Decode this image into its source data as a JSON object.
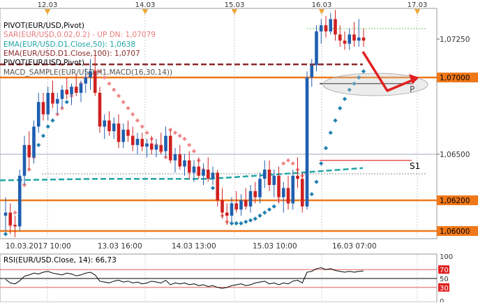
{
  "chart_data": {
    "type": "candlestick",
    "symbol": "EURUSD",
    "timeframe": "H1",
    "top_dates": [
      "12.03",
      "14.03",
      "15.03",
      "16.03",
      "17.03"
    ],
    "bottom_time_labels": [
      "10.03.2017 10:00",
      "13.03 16:00",
      "14.03 13:00",
      "15.03 10:00",
      "16.03 07:00"
    ],
    "price_axis": {
      "min": 1.0595,
      "max": 1.0745,
      "ticks": [
        "1,07250",
        "1,07000",
        "1,06500",
        "1,06200",
        "1,06000"
      ]
    },
    "legend": [
      {
        "text": "PIVOT(EUR/USD,Pivot)",
        "color": "#000000"
      },
      {
        "text": "SAR(EUR/USD,0.02,0.2)  -  UP  DN: 1,07079",
        "color": "#e87b7b"
      },
      {
        "text": "EMA(EUR/USD.D1.Close,50): 1,0638",
        "color": "#21a5a5"
      },
      {
        "text": "EMA(EUR/USD.D1.Close,100): 1,0707",
        "color": "#8b2a2a"
      },
      {
        "text": "PIVOT(EUR/USD,Pivot)",
        "color": "#000000"
      },
      {
        "text": "MACD_SAMPLE(EUR/USD,H1,MACD(16,30,14))",
        "color": "#555555"
      }
    ],
    "levels": [
      {
        "label": "P",
        "value": 1.0696
      },
      {
        "label": "S1",
        "value": 1.0646
      }
    ],
    "horizontal_lines": [
      1.07,
      1.065,
      1.062,
      1.06
    ],
    "price_tag_labels": [
      "1,07250",
      "1,07000",
      "1,06500",
      "1,06200",
      "1,06000"
    ],
    "candles": [
      [
        1.061,
        1.0622,
        1.06,
        1.0612
      ],
      [
        1.0612,
        1.0618,
        1.0598,
        1.0604
      ],
      [
        1.0604,
        1.061,
        1.0596,
        1.0603
      ],
      [
        1.0603,
        1.064,
        1.06,
        1.0636
      ],
      [
        1.0636,
        1.0662,
        1.063,
        1.0656
      ],
      [
        1.0656,
        1.0665,
        1.064,
        1.0648
      ],
      [
        1.0648,
        1.0672,
        1.0644,
        1.0668
      ],
      [
        1.0668,
        1.069,
        1.0664,
        1.0684
      ],
      [
        1.0684,
        1.069,
        1.0672,
        1.0676
      ],
      [
        1.0676,
        1.0694,
        1.0672,
        1.069
      ],
      [
        1.069,
        1.0698,
        1.068,
        1.0683
      ],
      [
        1.0683,
        1.069,
        1.0676,
        1.0686
      ],
      [
        1.0686,
        1.0695,
        1.068,
        1.0692
      ],
      [
        1.0692,
        1.07,
        1.0686,
        1.0689
      ],
      [
        1.0689,
        1.0696,
        1.0682,
        1.0694
      ],
      [
        1.0694,
        1.0702,
        1.0688,
        1.069
      ],
      [
        1.069,
        1.0698,
        1.0684,
        1.0696
      ],
      [
        1.0696,
        1.0706,
        1.069,
        1.07
      ],
      [
        1.07,
        1.0712,
        1.0692,
        1.0704
      ],
      [
        1.0704,
        1.0714,
        1.0688,
        1.069
      ],
      [
        1.069,
        1.0694,
        1.0664,
        1.0668
      ],
      [
        1.0668,
        1.0676,
        1.066,
        1.0672
      ],
      [
        1.0672,
        1.0678,
        1.0662,
        1.0665
      ],
      [
        1.0665,
        1.0674,
        1.066,
        1.067
      ],
      [
        1.067,
        1.0676,
        1.0654,
        1.0658
      ],
      [
        1.0658,
        1.067,
        1.0654,
        1.0666
      ],
      [
        1.0666,
        1.0672,
        1.0658,
        1.0662
      ],
      [
        1.0662,
        1.0668,
        1.0652,
        1.0656
      ],
      [
        1.0656,
        1.0664,
        1.065,
        1.066
      ],
      [
        1.066,
        1.0664,
        1.0652,
        1.0655
      ],
      [
        1.0655,
        1.066,
        1.0648,
        1.0657
      ],
      [
        1.0657,
        1.0662,
        1.065,
        1.0653
      ],
      [
        1.0653,
        1.066,
        1.0648,
        1.0656
      ],
      [
        1.0656,
        1.0664,
        1.065,
        1.0652
      ],
      [
        1.0652,
        1.0668,
        1.0648,
        1.0662
      ],
      [
        1.0662,
        1.0666,
        1.0644,
        1.0646
      ],
      [
        1.0646,
        1.0654,
        1.0638,
        1.065
      ],
      [
        1.065,
        1.0656,
        1.064,
        1.0642
      ],
      [
        1.0642,
        1.065,
        1.0636,
        1.0646
      ],
      [
        1.0646,
        1.0652,
        1.0634,
        1.0638
      ],
      [
        1.0638,
        1.0646,
        1.0632,
        1.0642
      ],
      [
        1.0642,
        1.0648,
        1.0634,
        1.0636
      ],
      [
        1.0636,
        1.0644,
        1.063,
        1.064
      ],
      [
        1.064,
        1.0648,
        1.0632,
        1.0634
      ],
      [
        1.0634,
        1.0642,
        1.063,
        1.0638
      ],
      [
        1.0638,
        1.064,
        1.0616,
        1.062
      ],
      [
        1.062,
        1.0628,
        1.0608,
        1.0612
      ],
      [
        1.0612,
        1.0618,
        1.0604,
        1.061
      ],
      [
        1.061,
        1.0622,
        1.0606,
        1.0618
      ],
      [
        1.0618,
        1.0626,
        1.0612,
        1.0614
      ],
      [
        1.0614,
        1.0624,
        1.061,
        1.062
      ],
      [
        1.062,
        1.0628,
        1.0614,
        1.0616
      ],
      [
        1.0616,
        1.063,
        1.0612,
        1.0626
      ],
      [
        1.0626,
        1.0632,
        1.0618,
        1.0622
      ],
      [
        1.0622,
        1.0638,
        1.0618,
        1.0634
      ],
      [
        1.0634,
        1.0646,
        1.0628,
        1.064
      ],
      [
        1.064,
        1.0646,
        1.0626,
        1.063
      ],
      [
        1.063,
        1.064,
        1.0622,
        1.0636
      ],
      [
        1.0636,
        1.0642,
        1.0618,
        1.0622
      ],
      [
        1.0622,
        1.0632,
        1.0612,
        1.0628
      ],
      [
        1.0628,
        1.0636,
        1.0614,
        1.0618
      ],
      [
        1.0618,
        1.064,
        1.0614,
        1.0636
      ],
      [
        1.0636,
        1.0648,
        1.0628,
        1.0634
      ],
      [
        1.0634,
        1.0638,
        1.0612,
        1.0616
      ],
      [
        1.0616,
        1.0704,
        1.0614,
        1.07
      ],
      [
        1.07,
        1.0712,
        1.0694,
        1.0708
      ],
      [
        1.0708,
        1.0734,
        1.0704,
        1.073
      ],
      [
        1.073,
        1.0738,
        1.0722,
        1.0734
      ],
      [
        1.0734,
        1.074,
        1.0726,
        1.073
      ],
      [
        1.073,
        1.0742,
        1.0728,
        1.0738
      ],
      [
        1.0738,
        1.0744,
        1.0724,
        1.0728
      ],
      [
        1.0728,
        1.0734,
        1.072,
        1.0724
      ],
      [
        1.0724,
        1.073,
        1.0718,
        1.0722
      ],
      [
        1.0722,
        1.0732,
        1.0718,
        1.0728
      ],
      [
        1.0728,
        1.0736,
        1.072,
        1.0724
      ],
      [
        1.0724,
        1.0738,
        1.072,
        1.0726
      ],
      [
        1.0726,
        1.0732,
        1.072,
        1.0724
      ]
    ],
    "sar_points": [
      1.0598,
      1.0604,
      1.0612,
      1.062,
      1.063,
      1.064,
      1.0648,
      1.0656,
      1.0662,
      1.0668,
      1.0672,
      1.0676,
      1.068,
      1.0684,
      1.0688,
      1.0692,
      1.0696,
      1.07,
      1.0702,
      1.0704,
      1.0704,
      1.07,
      1.0696,
      1.0692,
      1.0688,
      1.0684,
      1.068,
      1.0676,
      1.0672,
      1.0668,
      1.0664,
      1.066,
      1.0656,
      1.0652,
      1.0648,
      1.0666,
      1.0664,
      1.0662,
      1.066,
      1.0656,
      1.0652,
      1.0646,
      1.064,
      1.0636,
      1.0628,
      1.0624,
      1.061,
      1.0606,
      1.0605,
      1.0605,
      1.0605,
      1.0606,
      1.0607,
      1.0608,
      1.061,
      1.0612,
      1.0614,
      1.0616,
      1.062,
      1.0644,
      1.0646,
      1.0644,
      1.064,
      1.0636,
      1.0618,
      1.0624,
      1.0632,
      1.0644,
      1.0654,
      1.0664,
      1.0672,
      1.068,
      1.0686,
      1.0692,
      1.0696,
      1.07,
      1.0704
    ],
    "rsi": {
      "label": "RSI(EUR/USD.Close, 14): 66,73",
      "axis_ticks": [
        "100",
        "70",
        "50",
        "30",
        "0"
      ],
      "values": [
        48,
        40,
        38,
        45,
        55,
        58,
        62,
        60,
        64,
        66,
        62,
        60,
        58,
        62,
        60,
        56,
        58,
        62,
        64,
        58,
        44,
        42,
        40,
        44,
        46,
        42,
        44,
        40,
        42,
        38,
        40,
        44,
        42,
        40,
        46,
        36,
        40,
        38,
        40,
        36,
        38,
        34,
        36,
        32,
        34,
        30,
        28,
        30,
        34,
        36,
        38,
        34,
        36,
        40,
        42,
        44,
        38,
        40,
        36,
        40,
        38,
        44,
        46,
        40,
        64,
        66,
        72,
        74,
        70,
        72,
        68,
        66,
        64,
        66,
        64,
        66,
        67
      ]
    }
  }
}
